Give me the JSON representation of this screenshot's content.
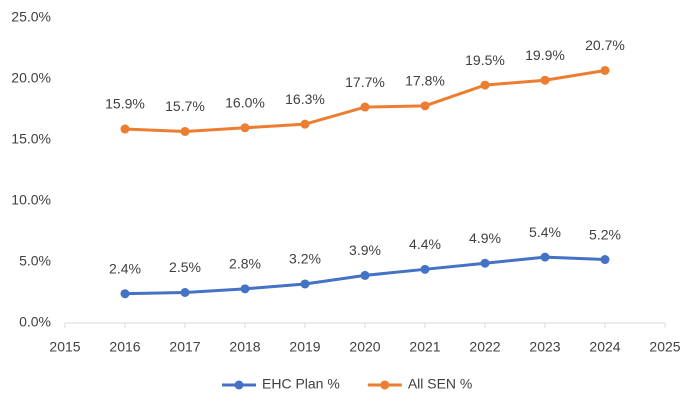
{
  "chart_data": {
    "type": "line",
    "x": [
      2016,
      2017,
      2018,
      2019,
      2020,
      2021,
      2022,
      2023,
      2024
    ],
    "xlim": [
      2015,
      2025
    ],
    "xticks": [
      2015,
      2016,
      2017,
      2018,
      2019,
      2020,
      2021,
      2022,
      2023,
      2024,
      2025
    ],
    "ylim": [
      0,
      25
    ],
    "yticks": [
      {
        "value": 0,
        "label": "0.0%"
      },
      {
        "value": 5,
        "label": "5.0%"
      },
      {
        "value": 10,
        "label": "10.0%"
      },
      {
        "value": 15,
        "label": "15.0%"
      },
      {
        "value": 20,
        "label": "20.0%"
      },
      {
        "value": 25,
        "label": "25.0%"
      }
    ],
    "legend": "bottom",
    "series": [
      {
        "name": "EHC Plan %",
        "color": "#4472c4",
        "values": [
          2.4,
          2.5,
          2.8,
          3.2,
          3.9,
          4.4,
          4.9,
          5.4,
          5.2
        ],
        "value_labels": [
          "2.4%",
          "2.5%",
          "2.8%",
          "3.2%",
          "3.9%",
          "4.4%",
          "4.9%",
          "5.4%",
          "5.2%"
        ]
      },
      {
        "name": "All SEN %",
        "color": "#ed7d31",
        "values": [
          15.9,
          15.7,
          16.0,
          16.3,
          17.7,
          17.8,
          19.5,
          19.9,
          20.7
        ],
        "value_labels": [
          "15.9%",
          "15.7%",
          "16.0%",
          "16.3%",
          "17.7%",
          "17.8%",
          "19.5%",
          "19.9%",
          "20.7%"
        ]
      }
    ]
  }
}
